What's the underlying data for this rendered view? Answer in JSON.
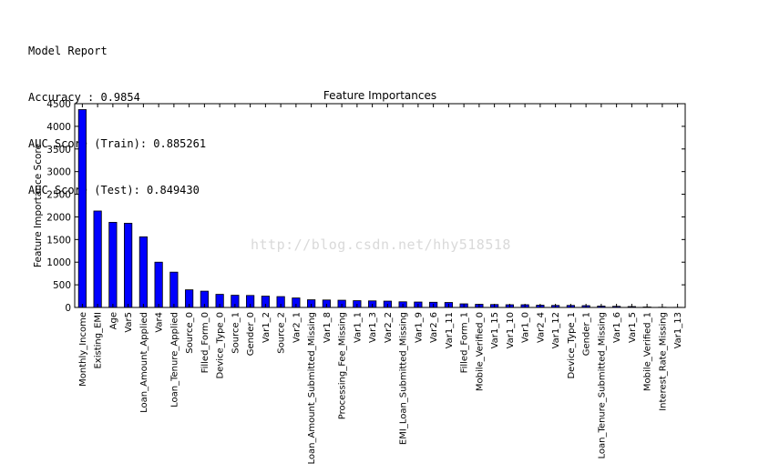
{
  "report": {
    "lines": [
      "Model Report",
      "Accuracy : 0.9854",
      "AUC Score (Train): 0.885261",
      "AUC Score (Test): 0.849430"
    ]
  },
  "watermark": "http://blog.csdn.net/hhy518518",
  "colors": {
    "bar": "#0000ff",
    "edge": "#000000"
  },
  "chart_data": {
    "type": "bar",
    "title": "Feature Importances",
    "xlabel": "",
    "ylabel": "Feature Importance Score",
    "ylim": [
      0,
      4500
    ],
    "yticks": [
      0,
      500,
      1000,
      1500,
      2000,
      2500,
      3000,
      3500,
      4000,
      4500
    ],
    "grid": false,
    "categories": [
      "Monthly_Income",
      "Existing_EMI",
      "Age",
      "Var5",
      "Loan_Amount_Applied",
      "Var4",
      "Loan_Tenure_Applied",
      "Source_0",
      "Filled_Form_0",
      "Device_Type_0",
      "Source_1",
      "Gender_0",
      "Var1_2",
      "Source_2",
      "Var2_1",
      "Loan_Amount_Submitted_Missing",
      "Var1_8",
      "Processing_Fee_Missing",
      "Var1_1",
      "Var1_3",
      "Var2_2",
      "EMI_Loan_Submitted_Missing",
      "Var1_9",
      "Var2_6",
      "Var1_11",
      "Filled_Form_1",
      "Mobile_Verified_0",
      "Var1_15",
      "Var1_10",
      "Var1_0",
      "Var2_4",
      "Var1_12",
      "Device_Type_1",
      "Gender_1",
      "Loan_Tenure_Submitted_Missing",
      "Var1_6",
      "Var1_5",
      "Mobile_Verified_1",
      "Interest_Rate_Missing",
      "Var1_13"
    ],
    "values": [
      4370,
      2130,
      1880,
      1860,
      1560,
      1000,
      780,
      390,
      360,
      290,
      270,
      265,
      250,
      240,
      210,
      170,
      165,
      160,
      150,
      145,
      140,
      125,
      120,
      115,
      110,
      80,
      70,
      65,
      60,
      60,
      50,
      45,
      45,
      40,
      30,
      25,
      20,
      10,
      5,
      3
    ]
  }
}
